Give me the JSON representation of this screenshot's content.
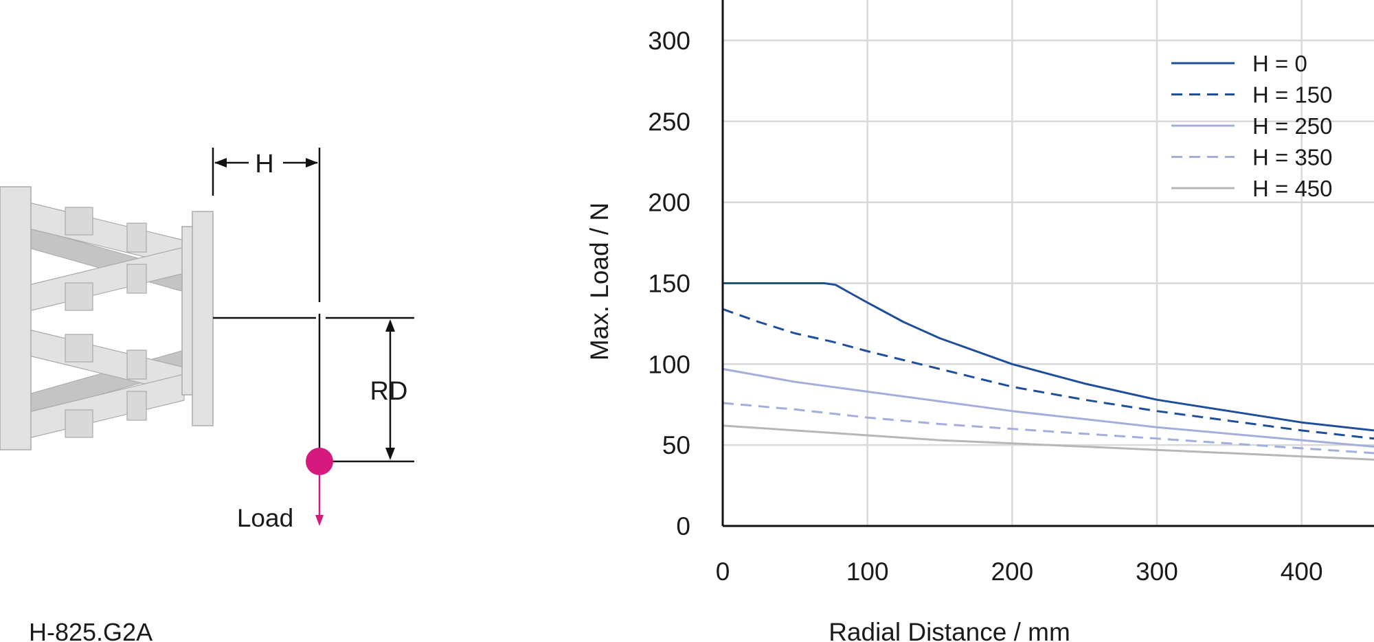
{
  "diagram": {
    "product_label": "H-825.G2A",
    "h_label": "H",
    "rd_label": "RD",
    "load_label": "Load",
    "load_color": "#d6197e"
  },
  "chart_data": {
    "type": "line",
    "title": "",
    "xlabel": "Radial Distance / mm",
    "ylabel": "Max. Load / N",
    "xlim": [
      0,
      450
    ],
    "ylim": [
      0,
      325
    ],
    "x_ticks": [
      0,
      100,
      200,
      300,
      400
    ],
    "y_ticks": [
      0,
      50,
      100,
      150,
      200,
      250,
      300
    ],
    "grid": true,
    "legend_position": "top-right",
    "series": [
      {
        "name": "H = 0",
        "color": "#1f4e9a",
        "dash": "solid",
        "x": [
          0,
          70,
          78,
          90,
          100,
          125,
          150,
          200,
          250,
          300,
          350,
          400,
          450
        ],
        "y": [
          150,
          150,
          149,
          143,
          138,
          126,
          116,
          100,
          88,
          78,
          71,
          64,
          59
        ]
      },
      {
        "name": "H = 150",
        "color": "#1f4e9a",
        "dash": "dashed",
        "x": [
          0,
          25,
          50,
          75,
          100,
          150,
          200,
          250,
          300,
          350,
          400,
          450
        ],
        "y": [
          134,
          126,
          119,
          114,
          108,
          97,
          86,
          78,
          71,
          65,
          59,
          54
        ]
      },
      {
        "name": "H = 250",
        "color": "#a4aedb",
        "dash": "solid",
        "x": [
          0,
          50,
          100,
          150,
          200,
          250,
          300,
          350,
          400,
          450
        ],
        "y": [
          97,
          89,
          83,
          77,
          71,
          66,
          61,
          57,
          53,
          49
        ]
      },
      {
        "name": "H = 350",
        "color": "#a4aedb",
        "dash": "dashed",
        "x": [
          0,
          50,
          100,
          150,
          200,
          250,
          300,
          350,
          400,
          450
        ],
        "y": [
          76,
          72,
          67,
          63,
          60,
          57,
          54,
          51,
          48,
          45
        ]
      },
      {
        "name": "H = 450",
        "color": "#b7b7b7",
        "dash": "solid",
        "x": [
          0,
          50,
          100,
          150,
          200,
          250,
          300,
          350,
          400,
          450
        ],
        "y": [
          62,
          59,
          56,
          53,
          51,
          49,
          47,
          45,
          43,
          41
        ]
      }
    ]
  }
}
